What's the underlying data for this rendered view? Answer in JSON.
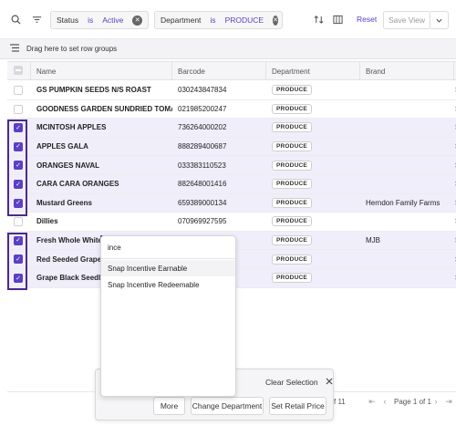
{
  "filters": [
    {
      "field": "Status",
      "op": "is",
      "value": "Active"
    },
    {
      "field": "Department",
      "op": "is",
      "value": "PRODUCE"
    }
  ],
  "toolbar": {
    "reset": "Reset",
    "save_view": "Save View"
  },
  "group_bar": {
    "label": "Drag here to set row groups"
  },
  "columns": {
    "name": "Name",
    "barcode": "Barcode",
    "department": "Department",
    "brand": "Brand",
    "overflow": "I"
  },
  "rows": [
    {
      "name": "GS PUMPKIN SEEDS N/S ROAST",
      "barcode": "030243847834",
      "department": "PRODUCE",
      "brand": "",
      "selected": false,
      "overflow": "S"
    },
    {
      "name": "GOODNESS GARDEN SUNDRIED TOMATOES",
      "barcode": "021985200247",
      "department": "PRODUCE",
      "brand": "",
      "selected": false,
      "overflow": "S"
    },
    {
      "name": "MCINTOSH APPLES",
      "barcode": "736264000202",
      "department": "PRODUCE",
      "brand": "",
      "selected": true,
      "overflow": "S"
    },
    {
      "name": "APPLES GALA",
      "barcode": "888289400687",
      "department": "PRODUCE",
      "brand": "",
      "selected": true,
      "overflow": "S"
    },
    {
      "name": "ORANGES NAVAL",
      "barcode": "033383110523",
      "department": "PRODUCE",
      "brand": "",
      "selected": true,
      "overflow": "S"
    },
    {
      "name": "CARA CARA ORANGES",
      "barcode": "882648001416",
      "department": "PRODUCE",
      "brand": "",
      "selected": true,
      "overflow": "S"
    },
    {
      "name": "Mustard Greens",
      "barcode": "659389000134",
      "department": "PRODUCE",
      "brand": "Herndon Family Farms",
      "selected": true,
      "overflow": "S"
    },
    {
      "name": "Dillies",
      "barcode": "070969927595",
      "department": "PRODUCE",
      "brand": "",
      "selected": false,
      "overflow": "S"
    },
    {
      "name": "Fresh Whole White Mu",
      "barcode": "",
      "department": "PRODUCE",
      "brand": "MJB",
      "selected": true,
      "overflow": "S"
    },
    {
      "name": "Red Seeded Grapes",
      "barcode": "",
      "department": "PRODUCE",
      "brand": "",
      "selected": true,
      "overflow": "S"
    },
    {
      "name": "Grape Black Seedless",
      "barcode": "",
      "department": "PRODUCE",
      "brand": "",
      "selected": true,
      "overflow": "S"
    }
  ],
  "dropdown": {
    "search_value": "ince",
    "options": [
      "Snap Incentive Earnable",
      "Snap Incentive Redeemable"
    ]
  },
  "action_bar": {
    "clear_selection": "Clear Selection",
    "buttons": [
      "More",
      "Change Department",
      "Set Retail Price"
    ]
  },
  "pagination": {
    "count_text": "f 11",
    "page_text": "Page 1 of 1"
  },
  "colors": {
    "accent": "#5b3fc4",
    "highlight_box": "#4a2a8c",
    "selected_row": "#f1eefb"
  }
}
